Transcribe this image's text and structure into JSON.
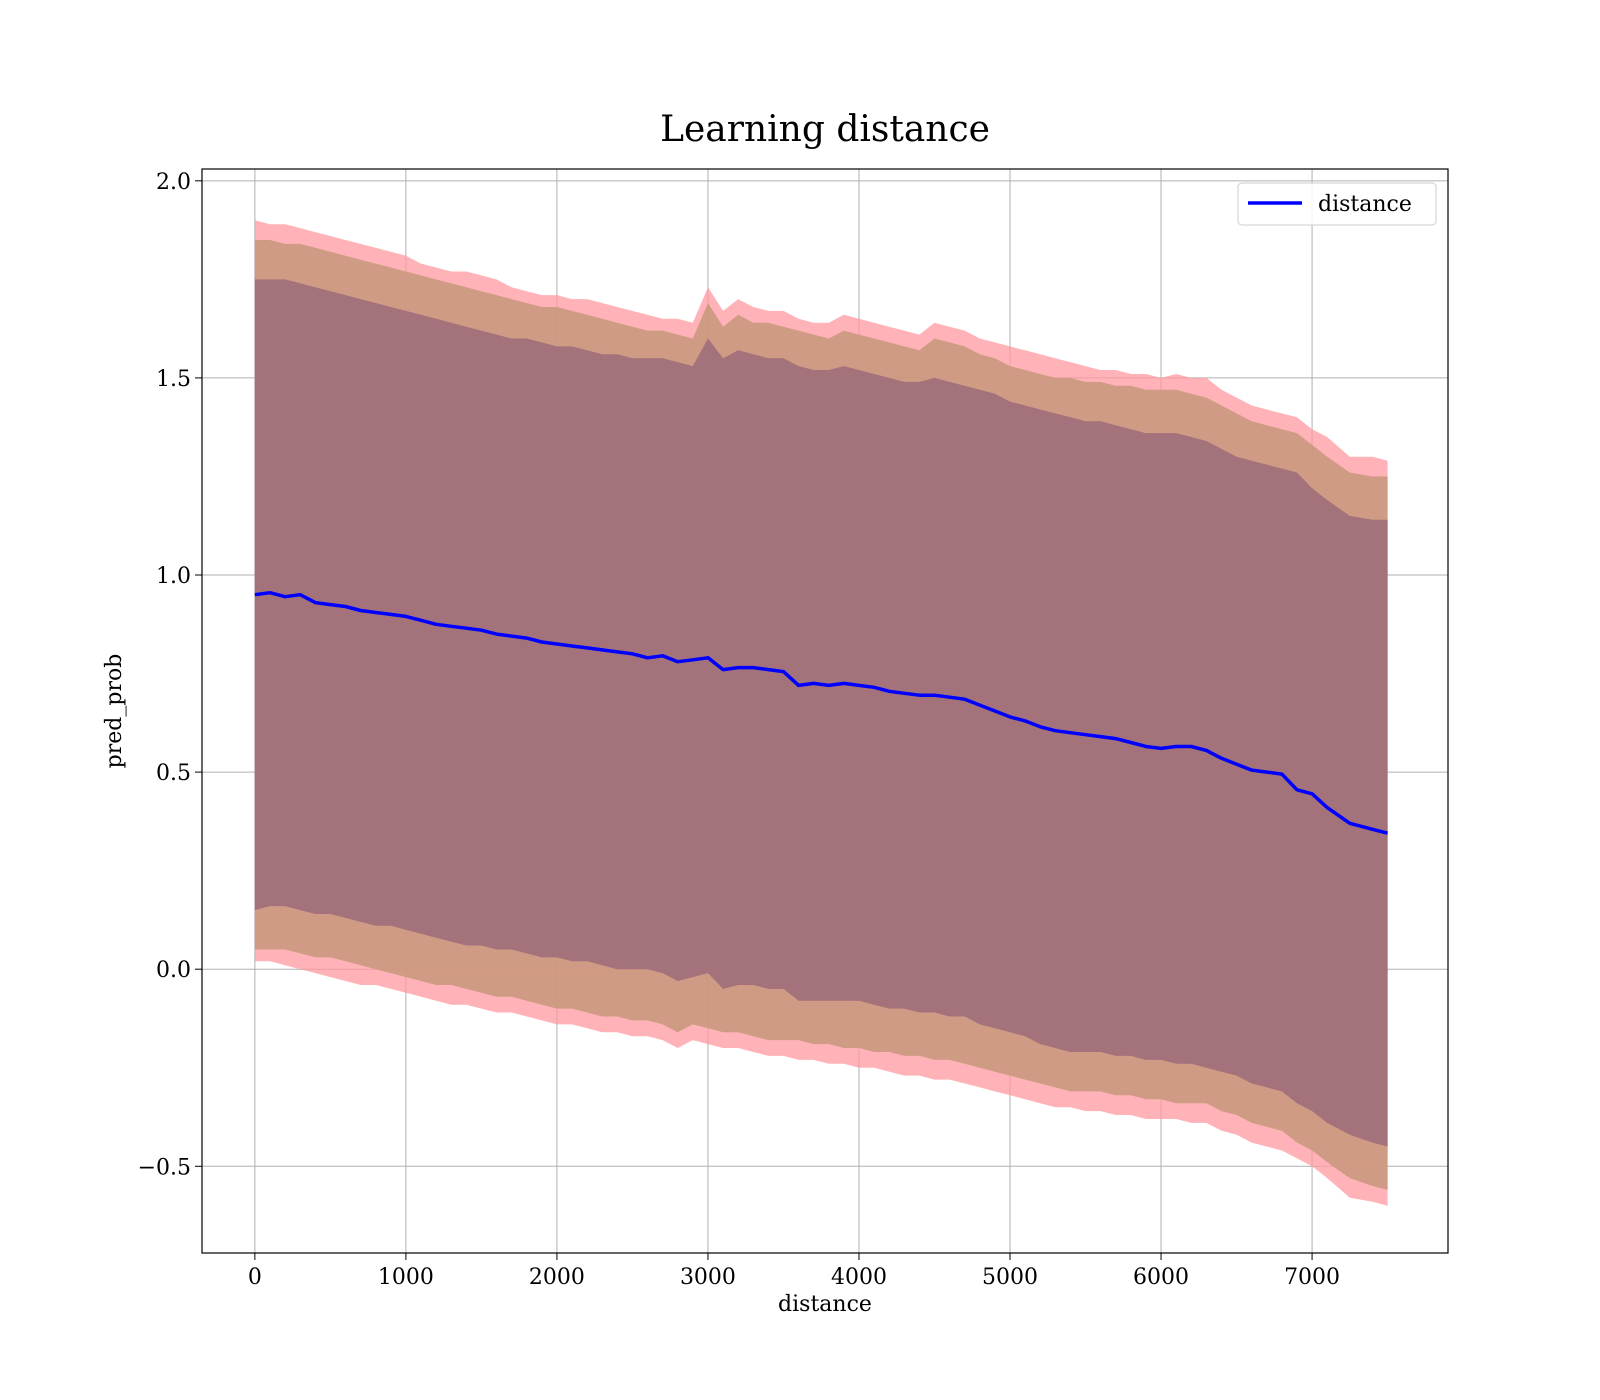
{
  "chart_data": {
    "type": "line",
    "title": "Learning distance",
    "xlabel": "distance",
    "ylabel": "pred_prob",
    "xlim": [
      -350,
      7900
    ],
    "ylim": [
      -0.72,
      2.03
    ],
    "xticks": [
      0,
      1000,
      2000,
      3000,
      4000,
      5000,
      6000,
      7000
    ],
    "yticks": [
      -0.5,
      0.0,
      0.5,
      1.0,
      1.5,
      2.0
    ],
    "xtick_labels": [
      "0",
      "1000",
      "2000",
      "3000",
      "4000",
      "5000",
      "6000",
      "7000"
    ],
    "ytick_labels": [
      "−0.5",
      "0.0",
      "0.5",
      "1.0",
      "1.5",
      "2.0"
    ],
    "grid": true,
    "legend": {
      "placement": "top-right",
      "entries": [
        "distance"
      ]
    },
    "colors": {
      "line": "#0000ff",
      "outer_band": "#ff9aa0",
      "middle_band": "#c8967a",
      "inner_band": "#a0707a",
      "grid": "#b0b0b0"
    },
    "series": [
      {
        "name": "distance",
        "x": [
          0,
          100,
          200,
          300,
          400,
          500,
          600,
          700,
          800,
          900,
          1000,
          1100,
          1200,
          1300,
          1400,
          1500,
          1600,
          1700,
          1800,
          1900,
          2000,
          2100,
          2200,
          2300,
          2400,
          2500,
          2600,
          2700,
          2800,
          2900,
          3000,
          3100,
          3200,
          3300,
          3400,
          3500,
          3600,
          3700,
          3800,
          3900,
          4000,
          4100,
          4200,
          4300,
          4400,
          4500,
          4600,
          4700,
          4800,
          4900,
          5000,
          5100,
          5200,
          5300,
          5400,
          5500,
          5600,
          5700,
          5800,
          5900,
          6000,
          6100,
          6200,
          6300,
          6400,
          6500,
          6600,
          6700,
          6800,
          6900,
          7000,
          7100,
          7250,
          7400,
          7500
        ],
        "y": [
          0.95,
          0.955,
          0.945,
          0.95,
          0.93,
          0.925,
          0.92,
          0.91,
          0.905,
          0.9,
          0.895,
          0.885,
          0.875,
          0.87,
          0.865,
          0.86,
          0.85,
          0.845,
          0.84,
          0.83,
          0.825,
          0.82,
          0.815,
          0.81,
          0.805,
          0.8,
          0.79,
          0.795,
          0.78,
          0.785,
          0.79,
          0.76,
          0.765,
          0.765,
          0.76,
          0.755,
          0.72,
          0.725,
          0.72,
          0.725,
          0.72,
          0.715,
          0.705,
          0.7,
          0.695,
          0.695,
          0.69,
          0.685,
          0.67,
          0.655,
          0.64,
          0.63,
          0.615,
          0.605,
          0.6,
          0.595,
          0.59,
          0.585,
          0.575,
          0.565,
          0.56,
          0.565,
          0.565,
          0.555,
          0.535,
          0.52,
          0.505,
          0.5,
          0.495,
          0.455,
          0.445,
          0.41,
          0.37,
          0.355,
          0.345
        ]
      }
    ],
    "bands": [
      {
        "name": "outer",
        "upper": [
          1.9,
          1.89,
          1.89,
          1.88,
          1.87,
          1.86,
          1.85,
          1.84,
          1.83,
          1.82,
          1.81,
          1.79,
          1.78,
          1.77,
          1.77,
          1.76,
          1.75,
          1.73,
          1.72,
          1.71,
          1.71,
          1.7,
          1.7,
          1.69,
          1.68,
          1.67,
          1.66,
          1.65,
          1.65,
          1.64,
          1.73,
          1.67,
          1.7,
          1.68,
          1.67,
          1.67,
          1.65,
          1.64,
          1.64,
          1.66,
          1.65,
          1.64,
          1.63,
          1.62,
          1.61,
          1.64,
          1.63,
          1.62,
          1.6,
          1.59,
          1.58,
          1.57,
          1.56,
          1.55,
          1.54,
          1.53,
          1.52,
          1.52,
          1.51,
          1.51,
          1.5,
          1.51,
          1.5,
          1.5,
          1.47,
          1.45,
          1.43,
          1.42,
          1.41,
          1.4,
          1.37,
          1.35,
          1.3,
          1.3,
          1.29
        ],
        "lower": [
          0.02,
          0.02,
          0.01,
          0.0,
          -0.01,
          -0.02,
          -0.03,
          -0.04,
          -0.04,
          -0.05,
          -0.06,
          -0.07,
          -0.08,
          -0.09,
          -0.09,
          -0.1,
          -0.11,
          -0.11,
          -0.12,
          -0.13,
          -0.14,
          -0.14,
          -0.15,
          -0.16,
          -0.16,
          -0.17,
          -0.17,
          -0.18,
          -0.2,
          -0.18,
          -0.19,
          -0.2,
          -0.2,
          -0.21,
          -0.22,
          -0.22,
          -0.23,
          -0.23,
          -0.24,
          -0.24,
          -0.25,
          -0.25,
          -0.26,
          -0.27,
          -0.27,
          -0.28,
          -0.28,
          -0.29,
          -0.3,
          -0.31,
          -0.32,
          -0.33,
          -0.34,
          -0.35,
          -0.35,
          -0.36,
          -0.36,
          -0.37,
          -0.37,
          -0.38,
          -0.38,
          -0.38,
          -0.39,
          -0.39,
          -0.41,
          -0.42,
          -0.44,
          -0.45,
          -0.46,
          -0.48,
          -0.5,
          -0.53,
          -0.58,
          -0.59,
          -0.6
        ]
      },
      {
        "name": "middle",
        "upper": [
          1.85,
          1.85,
          1.84,
          1.84,
          1.83,
          1.82,
          1.81,
          1.8,
          1.79,
          1.78,
          1.77,
          1.76,
          1.75,
          1.74,
          1.73,
          1.72,
          1.71,
          1.7,
          1.69,
          1.68,
          1.68,
          1.67,
          1.66,
          1.65,
          1.64,
          1.63,
          1.62,
          1.62,
          1.61,
          1.6,
          1.69,
          1.63,
          1.66,
          1.64,
          1.64,
          1.63,
          1.62,
          1.61,
          1.6,
          1.62,
          1.61,
          1.6,
          1.59,
          1.58,
          1.57,
          1.6,
          1.59,
          1.58,
          1.56,
          1.55,
          1.53,
          1.52,
          1.51,
          1.5,
          1.5,
          1.49,
          1.49,
          1.48,
          1.48,
          1.47,
          1.47,
          1.47,
          1.46,
          1.45,
          1.43,
          1.41,
          1.39,
          1.38,
          1.37,
          1.36,
          1.33,
          1.3,
          1.26,
          1.25,
          1.25
        ],
        "lower": [
          0.05,
          0.05,
          0.05,
          0.04,
          0.03,
          0.03,
          0.02,
          0.01,
          0.0,
          -0.01,
          -0.02,
          -0.03,
          -0.04,
          -0.04,
          -0.05,
          -0.06,
          -0.07,
          -0.07,
          -0.08,
          -0.09,
          -0.1,
          -0.1,
          -0.11,
          -0.12,
          -0.12,
          -0.13,
          -0.13,
          -0.14,
          -0.16,
          -0.14,
          -0.15,
          -0.16,
          -0.16,
          -0.17,
          -0.18,
          -0.18,
          -0.18,
          -0.19,
          -0.19,
          -0.2,
          -0.2,
          -0.21,
          -0.21,
          -0.22,
          -0.22,
          -0.23,
          -0.23,
          -0.24,
          -0.25,
          -0.26,
          -0.27,
          -0.28,
          -0.29,
          -0.3,
          -0.31,
          -0.31,
          -0.31,
          -0.32,
          -0.32,
          -0.33,
          -0.33,
          -0.34,
          -0.34,
          -0.34,
          -0.36,
          -0.37,
          -0.39,
          -0.4,
          -0.41,
          -0.44,
          -0.46,
          -0.49,
          -0.53,
          -0.55,
          -0.56
        ]
      },
      {
        "name": "inner",
        "upper": [
          1.75,
          1.75,
          1.75,
          1.74,
          1.73,
          1.72,
          1.71,
          1.7,
          1.69,
          1.68,
          1.67,
          1.66,
          1.65,
          1.64,
          1.63,
          1.62,
          1.61,
          1.6,
          1.6,
          1.59,
          1.58,
          1.58,
          1.57,
          1.56,
          1.56,
          1.55,
          1.55,
          1.55,
          1.54,
          1.53,
          1.6,
          1.55,
          1.57,
          1.56,
          1.55,
          1.55,
          1.53,
          1.52,
          1.52,
          1.53,
          1.52,
          1.51,
          1.5,
          1.49,
          1.49,
          1.5,
          1.49,
          1.48,
          1.47,
          1.46,
          1.44,
          1.43,
          1.42,
          1.41,
          1.4,
          1.39,
          1.39,
          1.38,
          1.37,
          1.36,
          1.36,
          1.36,
          1.35,
          1.34,
          1.32,
          1.3,
          1.29,
          1.28,
          1.27,
          1.26,
          1.22,
          1.19,
          1.15,
          1.14,
          1.14
        ],
        "lower": [
          0.15,
          0.16,
          0.16,
          0.15,
          0.14,
          0.14,
          0.13,
          0.12,
          0.11,
          0.11,
          0.1,
          0.09,
          0.08,
          0.07,
          0.06,
          0.06,
          0.05,
          0.05,
          0.04,
          0.03,
          0.03,
          0.02,
          0.02,
          0.01,
          0.0,
          0.0,
          0.0,
          -0.01,
          -0.03,
          -0.02,
          -0.01,
          -0.05,
          -0.04,
          -0.04,
          -0.05,
          -0.05,
          -0.08,
          -0.08,
          -0.08,
          -0.08,
          -0.08,
          -0.09,
          -0.1,
          -0.1,
          -0.11,
          -0.11,
          -0.12,
          -0.12,
          -0.14,
          -0.15,
          -0.16,
          -0.17,
          -0.19,
          -0.2,
          -0.21,
          -0.21,
          -0.21,
          -0.22,
          -0.22,
          -0.23,
          -0.23,
          -0.24,
          -0.24,
          -0.25,
          -0.26,
          -0.27,
          -0.29,
          -0.3,
          -0.31,
          -0.34,
          -0.36,
          -0.39,
          -0.42,
          -0.44,
          -0.45
        ]
      }
    ]
  }
}
